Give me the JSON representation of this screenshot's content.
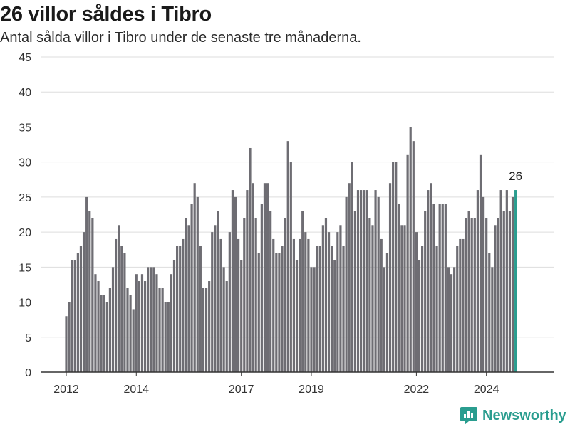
{
  "header": {
    "title": "26 villor såldes i Tibro",
    "subtitle": "Antal sålda villor i Tibro under de senaste tre månaderna."
  },
  "brand": {
    "name": "Newsworthy",
    "icon": "newsworthy-logo-icon"
  },
  "colors": {
    "bar": "#6e6d73",
    "highlight": "#2a9d8f",
    "grid": "#dddddd",
    "axis": "#333333",
    "text": "#333333"
  },
  "chart_data": {
    "type": "bar",
    "x_start": "2012-01",
    "interval": "month",
    "x_tick_labels": [
      "2012",
      "2014",
      "2017",
      "2019",
      "2022",
      "2024"
    ],
    "x_tick_dates": [
      "2012-01",
      "2014-01",
      "2017-01",
      "2019-01",
      "2022-01",
      "2024-01"
    ],
    "ylim": [
      0,
      45
    ],
    "y_ticks": [
      0,
      5,
      10,
      15,
      20,
      25,
      30,
      35,
      40,
      45
    ],
    "grid": true,
    "values": [
      8,
      10,
      16,
      16,
      17,
      18,
      20,
      25,
      23,
      22,
      14,
      13,
      11,
      11,
      10,
      12,
      15,
      19,
      21,
      18,
      17,
      12,
      11,
      9,
      14,
      13,
      14,
      13,
      15,
      15,
      15,
      14,
      12,
      12,
      10,
      10,
      14,
      16,
      18,
      18,
      19,
      22,
      21,
      24,
      27,
      25,
      18,
      12,
      12,
      13,
      20,
      21,
      23,
      19,
      15,
      13,
      20,
      26,
      25,
      19,
      16,
      22,
      26,
      32,
      27,
      22,
      17,
      24,
      27,
      27,
      23,
      19,
      17,
      17,
      18,
      22,
      33,
      30,
      19,
      16,
      19,
      23,
      20,
      19,
      15,
      15,
      18,
      18,
      21,
      22,
      20,
      18,
      16,
      20,
      21,
      18,
      25,
      27,
      30,
      23,
      26,
      26,
      26,
      26,
      22,
      21,
      26,
      25,
      19,
      15,
      17,
      27,
      30,
      30,
      24,
      21,
      21,
      31,
      35,
      33,
      20,
      16,
      18,
      23,
      26,
      27,
      24,
      18,
      24,
      24,
      24,
      15,
      14,
      15,
      18,
      19,
      19,
      22,
      23,
      22,
      22,
      26,
      31,
      25,
      22,
      17,
      15,
      21,
      22,
      26,
      23,
      26,
      23,
      25,
      26
    ],
    "highlight_last": true,
    "annotations": [
      {
        "text": "26"
      }
    ]
  }
}
